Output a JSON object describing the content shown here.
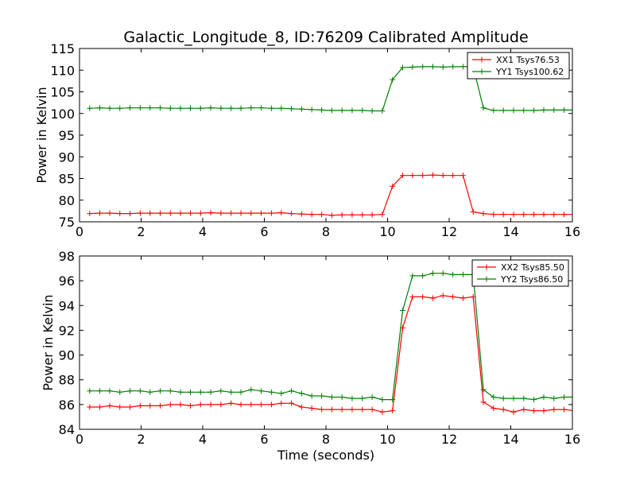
{
  "chart_data": [
    {
      "type": "line",
      "title": "Galactic_Longitude_8, ID:76209 Calibrated Amplitude",
      "xlabel": "",
      "ylabel": "Power in Kelvin",
      "xlim": [
        0,
        16
      ],
      "ylim": [
        75,
        115
      ],
      "xticks": [
        0,
        2,
        4,
        6,
        8,
        10,
        12,
        14,
        16
      ],
      "yticks": [
        75,
        80,
        85,
        90,
        95,
        100,
        105,
        110,
        115
      ],
      "grid": false,
      "legend_position": "top-right",
      "x": [
        0.33,
        0.66,
        0.98,
        1.31,
        1.64,
        1.97,
        2.29,
        2.62,
        2.95,
        3.28,
        3.6,
        3.93,
        4.26,
        4.59,
        4.92,
        5.24,
        5.57,
        5.9,
        6.23,
        6.55,
        6.88,
        7.21,
        7.54,
        7.86,
        8.19,
        8.52,
        8.85,
        9.18,
        9.5,
        9.83,
        10.16,
        10.49,
        10.81,
        11.14,
        11.47,
        11.8,
        12.12,
        12.45,
        12.78,
        13.11,
        13.44,
        13.76,
        14.09,
        14.42,
        14.75,
        15.07,
        15.4,
        15.73,
        16.06
      ],
      "series": [
        {
          "name": "XX1 Tsys76.53",
          "color": "#ff0000",
          "values": [
            76.9,
            77.0,
            77.0,
            76.9,
            76.9,
            77.0,
            77.0,
            77.0,
            77.0,
            77.0,
            77.0,
            77.0,
            77.1,
            77.0,
            77.0,
            77.0,
            77.0,
            77.0,
            77.0,
            77.1,
            76.9,
            76.8,
            76.7,
            76.7,
            76.5,
            76.6,
            76.6,
            76.6,
            76.6,
            76.7,
            83.2,
            85.7,
            85.7,
            85.7,
            85.8,
            85.7,
            85.7,
            85.7,
            77.3,
            76.9,
            76.7,
            76.7,
            76.7,
            76.7,
            76.7,
            76.7,
            76.7,
            76.7,
            76.7
          ]
        },
        {
          "name": "YY1 Tsys100.62",
          "color": "#008000",
          "values": [
            101.2,
            101.3,
            101.2,
            101.2,
            101.3,
            101.3,
            101.3,
            101.3,
            101.2,
            101.2,
            101.2,
            101.2,
            101.3,
            101.2,
            101.2,
            101.2,
            101.3,
            101.3,
            101.2,
            101.2,
            101.1,
            101.0,
            100.9,
            100.8,
            100.7,
            100.7,
            100.7,
            100.7,
            100.6,
            100.6,
            107.8,
            110.6,
            110.7,
            110.8,
            110.8,
            110.7,
            110.8,
            110.8,
            110.8,
            101.3,
            100.7,
            100.7,
            100.7,
            100.7,
            100.7,
            100.8,
            100.8,
            100.8,
            100.8
          ]
        }
      ]
    },
    {
      "type": "line",
      "title": "",
      "xlabel": "Time (seconds)",
      "ylabel": "Power in Kelvin",
      "xlim": [
        0,
        16
      ],
      "ylim": [
        84,
        98
      ],
      "xticks": [
        0,
        2,
        4,
        6,
        8,
        10,
        12,
        14,
        16
      ],
      "yticks": [
        84,
        86,
        88,
        90,
        92,
        94,
        96,
        98
      ],
      "grid": false,
      "legend_position": "top-right",
      "x": [
        0.33,
        0.66,
        0.98,
        1.31,
        1.64,
        1.97,
        2.29,
        2.62,
        2.95,
        3.28,
        3.6,
        3.93,
        4.26,
        4.59,
        4.92,
        5.24,
        5.57,
        5.9,
        6.23,
        6.55,
        6.88,
        7.21,
        7.54,
        7.86,
        8.19,
        8.52,
        8.85,
        9.18,
        9.5,
        9.83,
        10.16,
        10.49,
        10.81,
        11.14,
        11.47,
        11.8,
        12.12,
        12.45,
        12.78,
        13.11,
        13.44,
        13.76,
        14.09,
        14.42,
        14.75,
        15.07,
        15.4,
        15.73,
        16.06
      ],
      "series": [
        {
          "name": "XX2 Tsys85.50",
          "color": "#ff0000",
          "values": [
            85.8,
            85.8,
            85.9,
            85.8,
            85.8,
            85.9,
            85.9,
            85.9,
            86.0,
            86.0,
            85.9,
            86.0,
            86.0,
            86.0,
            86.1,
            86.0,
            86.0,
            86.0,
            86.0,
            86.1,
            86.1,
            85.8,
            85.7,
            85.6,
            85.6,
            85.6,
            85.6,
            85.6,
            85.6,
            85.4,
            85.5,
            92.2,
            94.7,
            94.7,
            94.6,
            94.8,
            94.7,
            94.6,
            94.7,
            86.2,
            85.7,
            85.6,
            85.4,
            85.6,
            85.5,
            85.5,
            85.6,
            85.6,
            85.5
          ]
        },
        {
          "name": "YY2 Tsys86.50",
          "color": "#008000",
          "values": [
            87.1,
            87.1,
            87.1,
            87.0,
            87.1,
            87.1,
            87.0,
            87.1,
            87.1,
            87.0,
            87.0,
            87.0,
            87.0,
            87.1,
            87.0,
            87.0,
            87.2,
            87.1,
            87.0,
            86.9,
            87.1,
            86.9,
            86.7,
            86.7,
            86.6,
            86.6,
            86.5,
            86.5,
            86.6,
            86.4,
            86.4,
            93.6,
            96.4,
            96.4,
            96.6,
            96.6,
            96.5,
            96.5,
            96.5,
            87.2,
            86.6,
            86.5,
            86.5,
            86.5,
            86.4,
            86.6,
            86.5,
            86.6,
            86.6
          ]
        }
      ]
    }
  ]
}
